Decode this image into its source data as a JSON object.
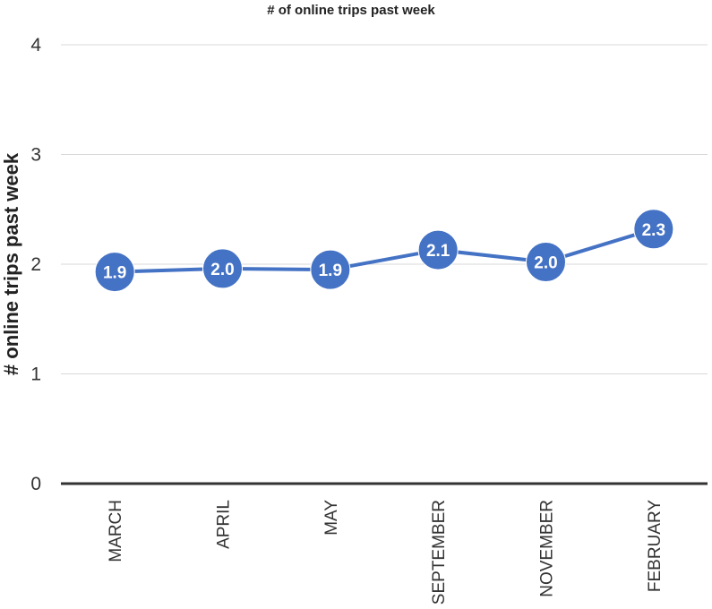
{
  "chart_data": {
    "type": "line",
    "title": "# of online trips past week",
    "xlabel": "",
    "ylabel": "# online trips past week",
    "categories": [
      "MARCH",
      "APRIL",
      "MAY",
      "SEPTEMBER",
      "NOVEMBER",
      "FEBRUARY"
    ],
    "series": [
      {
        "values": [
          1.93,
          1.96,
          1.95,
          2.13,
          2.02,
          2.32
        ],
        "data_labels": [
          "1.9",
          "2.0",
          "1.9",
          "2.1",
          "2.0",
          "2.3"
        ]
      }
    ],
    "ylim": [
      0,
      4
    ],
    "yticks": [
      "0",
      "1",
      "2",
      "3",
      "4"
    ],
    "grid": true,
    "legend": "none",
    "colors": {
      "series": "#4472c4",
      "label_text": "#ffffff",
      "grid": "#d9d9d9",
      "axis": "#333333"
    }
  }
}
